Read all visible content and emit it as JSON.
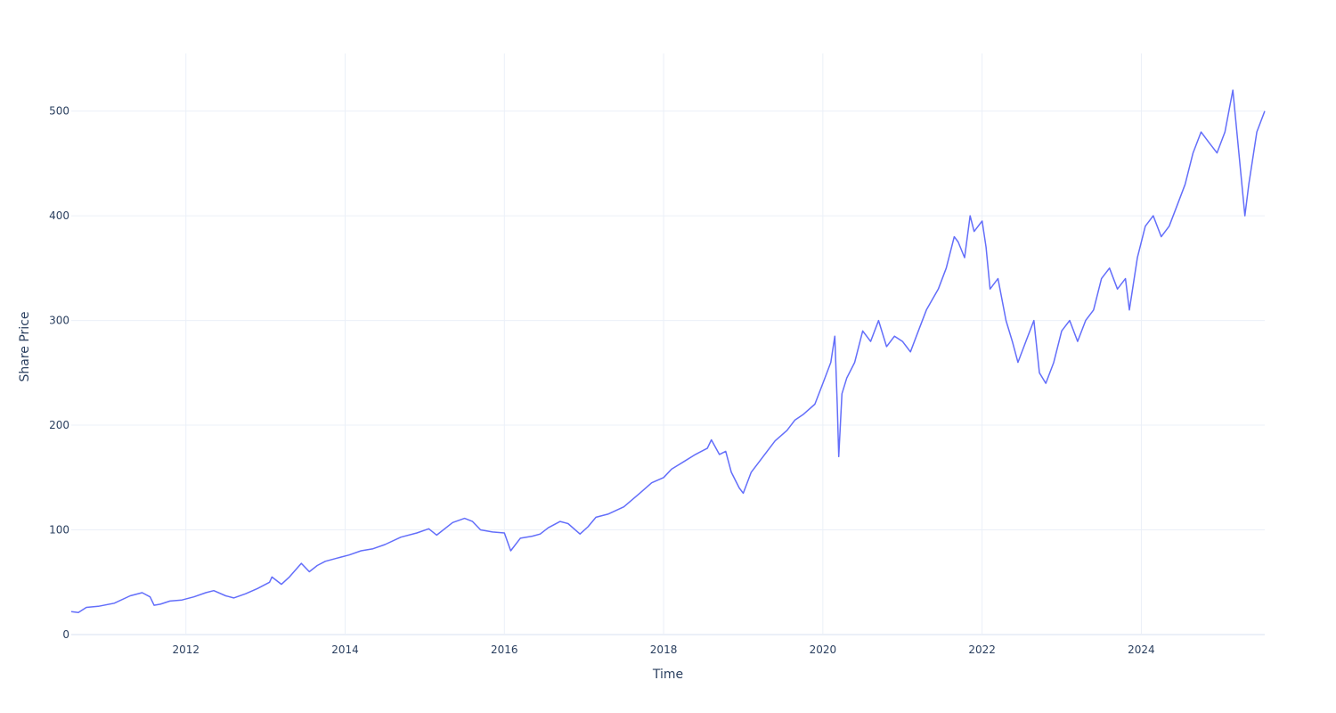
{
  "chart_data": {
    "type": "line",
    "title": "",
    "xlabel": "Time",
    "ylabel": "Share Price",
    "x_tick_labels": [
      "2012",
      "2014",
      "2016",
      "2018",
      "2020",
      "2022",
      "2024"
    ],
    "x_tick_values": [
      2012,
      2014,
      2016,
      2018,
      2020,
      2022,
      2024
    ],
    "y_tick_labels": [
      "0",
      "100",
      "200",
      "300",
      "400",
      "500"
    ],
    "y_tick_values": [
      0,
      100,
      200,
      300,
      400,
      500
    ],
    "xlim": [
      2010.56,
      2025.55
    ],
    "ylim": [
      0,
      555
    ],
    "grid": true,
    "legend": "none",
    "series": [
      {
        "color": "#636efa",
        "x": [
          2010.56,
          2010.65,
          2010.75,
          2010.9,
          2011.1,
          2011.3,
          2011.45,
          2011.55,
          2011.6,
          2011.68,
          2011.8,
          2011.95,
          2012.1,
          2012.25,
          2012.35,
          2012.5,
          2012.6,
          2012.75,
          2012.9,
          2013.05,
          2013.08,
          2013.2,
          2013.3,
          2013.45,
          2013.55,
          2013.65,
          2013.75,
          2013.9,
          2014.05,
          2014.2,
          2014.35,
          2014.5,
          2014.7,
          2014.9,
          2015.05,
          2015.15,
          2015.35,
          2015.5,
          2015.6,
          2015.7,
          2015.85,
          2016.0,
          2016.08,
          2016.2,
          2016.35,
          2016.45,
          2016.55,
          2016.7,
          2016.8,
          2016.95,
          2017.05,
          2017.15,
          2017.3,
          2017.5,
          2017.7,
          2017.85,
          2018.0,
          2018.1,
          2018.25,
          2018.4,
          2018.55,
          2018.6,
          2018.7,
          2018.78,
          2018.85,
          2018.95,
          2019.0,
          2019.1,
          2019.25,
          2019.4,
          2019.55,
          2019.65,
          2019.75,
          2019.9,
          2020.0,
          2020.1,
          2020.15,
          2020.18,
          2020.2,
          2020.24,
          2020.3,
          2020.4,
          2020.5,
          2020.6,
          2020.7,
          2020.8,
          2020.9,
          2021.0,
          2021.1,
          2021.2,
          2021.3,
          2021.45,
          2021.55,
          2021.65,
          2021.7,
          2021.78,
          2021.85,
          2021.9,
          2022.0,
          2022.05,
          2022.1,
          2022.2,
          2022.3,
          2022.38,
          2022.45,
          2022.55,
          2022.65,
          2022.72,
          2022.8,
          2022.9,
          2023.0,
          2023.1,
          2023.2,
          2023.3,
          2023.4,
          2023.5,
          2023.6,
          2023.7,
          2023.8,
          2023.85,
          2023.95,
          2024.05,
          2024.15,
          2024.25,
          2024.35,
          2024.45,
          2024.55,
          2024.65,
          2024.75,
          2024.85,
          2024.95,
          2025.05,
          2025.15,
          2025.25,
          2025.3,
          2025.35,
          2025.45,
          2025.55
        ],
        "y": [
          22,
          21,
          26,
          27,
          30,
          37,
          40,
          36,
          28,
          29,
          32,
          33,
          36,
          40,
          42,
          37,
          35,
          39,
          44,
          50,
          55,
          48,
          55,
          68,
          60,
          66,
          70,
          73,
          76,
          80,
          82,
          86,
          93,
          97,
          101,
          95,
          107,
          111,
          108,
          100,
          98,
          97,
          80,
          92,
          94,
          96,
          102,
          108,
          106,
          96,
          103,
          112,
          115,
          122,
          135,
          145,
          150,
          158,
          165,
          172,
          178,
          186,
          172,
          175,
          155,
          140,
          135,
          155,
          170,
          185,
          195,
          205,
          210,
          220,
          240,
          260,
          285,
          220,
          170,
          230,
          245,
          260,
          290,
          280,
          300,
          275,
          285,
          280,
          270,
          290,
          310,
          330,
          350,
          380,
          375,
          360,
          400,
          385,
          395,
          370,
          330,
          340,
          300,
          280,
          260,
          280,
          300,
          250,
          240,
          260,
          290,
          300,
          280,
          300,
          310,
          340,
          350,
          330,
          340,
          310,
          360,
          390,
          400,
          380,
          390,
          410,
          430,
          460,
          480,
          470,
          460,
          480,
          520,
          440,
          400,
          430,
          480,
          500
        ]
      }
    ]
  }
}
